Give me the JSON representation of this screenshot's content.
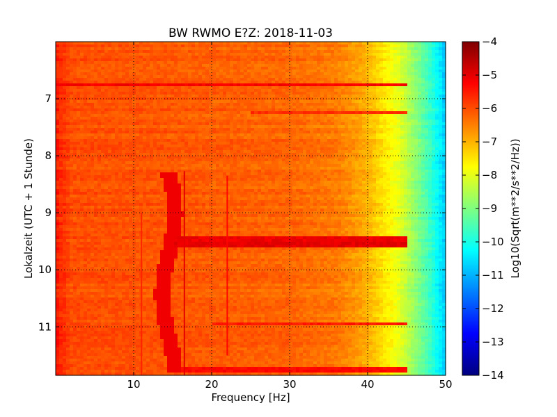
{
  "chart_data": {
    "type": "heatmap",
    "title": "BW RWMO E?Z: 2018-11-03",
    "xlabel": "Frequency [Hz]",
    "ylabel": "Lokalzeit (UTC + 1 Stunde)",
    "colorbar_label": "Log10(Sqrt(m**2/s**2/Hz))",
    "xlim": [
      0,
      50
    ],
    "ylim": [
      11.85,
      6.0
    ],
    "x_ticks": [
      10,
      20,
      30,
      40,
      50
    ],
    "y_ticks": [
      7,
      8,
      9,
      10,
      11
    ],
    "colorbar_range": [
      -14,
      -4
    ],
    "colorbar_ticks": [
      -4,
      -5,
      -6,
      -7,
      -8,
      -9,
      -10,
      -11,
      -12,
      -13,
      -14
    ],
    "colormap": "jet",
    "grid": true,
    "colorbar_placement": "right",
    "base_level_by_frequency": {
      "frequency_hz": [
        0,
        2,
        10,
        20,
        30,
        36,
        38,
        40,
        42,
        44,
        46,
        48,
        50
      ],
      "value": [
        -5.5,
        -6.0,
        -6.05,
        -6.15,
        -6.25,
        -6.45,
        -6.7,
        -7.0,
        -7.5,
        -8.0,
        -8.8,
        -9.7,
        -10.8
      ]
    },
    "horizontal_bands": [
      {
        "time": 6.75,
        "value": -5.2,
        "f_range": [
          0,
          50
        ]
      },
      {
        "time": 7.25,
        "value": -5.7,
        "f_range": [
          25,
          45
        ]
      },
      {
        "time": 9.45,
        "value": -5.1,
        "f_range": [
          15,
          50
        ]
      },
      {
        "time": 9.55,
        "value": -5.0,
        "f_range": [
          15,
          50
        ]
      },
      {
        "time": 10.95,
        "value": -5.5,
        "f_range": [
          20,
          45
        ]
      },
      {
        "time": 11.75,
        "value": -5.3,
        "f_range": [
          15,
          50
        ]
      }
    ],
    "vertical_lines": [
      {
        "frequency": 16.5,
        "value": -5.0,
        "t_range": [
          8.27,
          11.85
        ]
      },
      {
        "frequency": 22.0,
        "value": -5.3,
        "t_range": [
          8.35,
          11.5
        ]
      },
      {
        "frequency": 11.0,
        "value": -5.6,
        "t_range": [
          9.0,
          11.85
        ]
      }
    ],
    "features": [
      {
        "name": "wandering-tone",
        "t_range": [
          8.3,
          11.8
        ],
        "f_center": 14.5,
        "value": -5.1
      }
    ]
  }
}
